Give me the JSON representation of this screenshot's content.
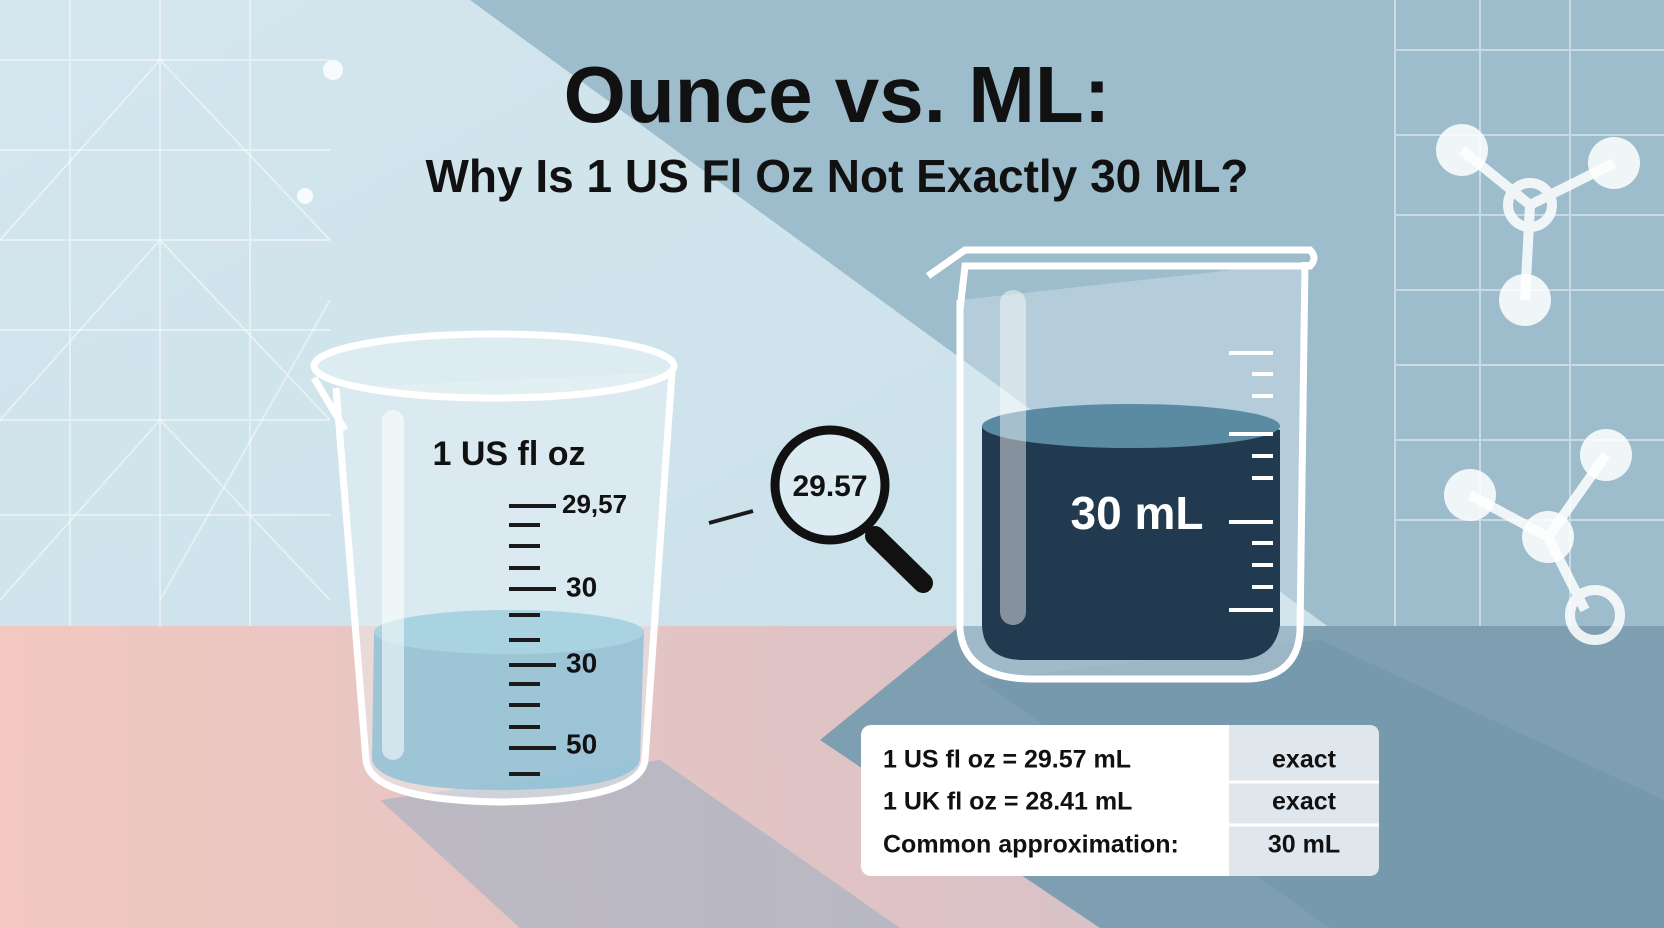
{
  "header": {
    "title": "Ounce vs. ML:",
    "subtitle": "Why Is 1 US Fl Oz Not Exactly 30 ML?"
  },
  "left_beaker": {
    "label": "1 US fl oz",
    "scale_labels": [
      "29,57",
      "30",
      "30",
      "50"
    ]
  },
  "magnifier": {
    "label": "29.57"
  },
  "right_beaker": {
    "label": "30 mL"
  },
  "table": {
    "rows": [
      [
        "1 US fl oz = 29.57 mL",
        "exact"
      ],
      [
        "1 UK fl oz = 28.41 mL",
        "exact"
      ],
      [
        "Common approximation:",
        "30 mL"
      ]
    ]
  }
}
